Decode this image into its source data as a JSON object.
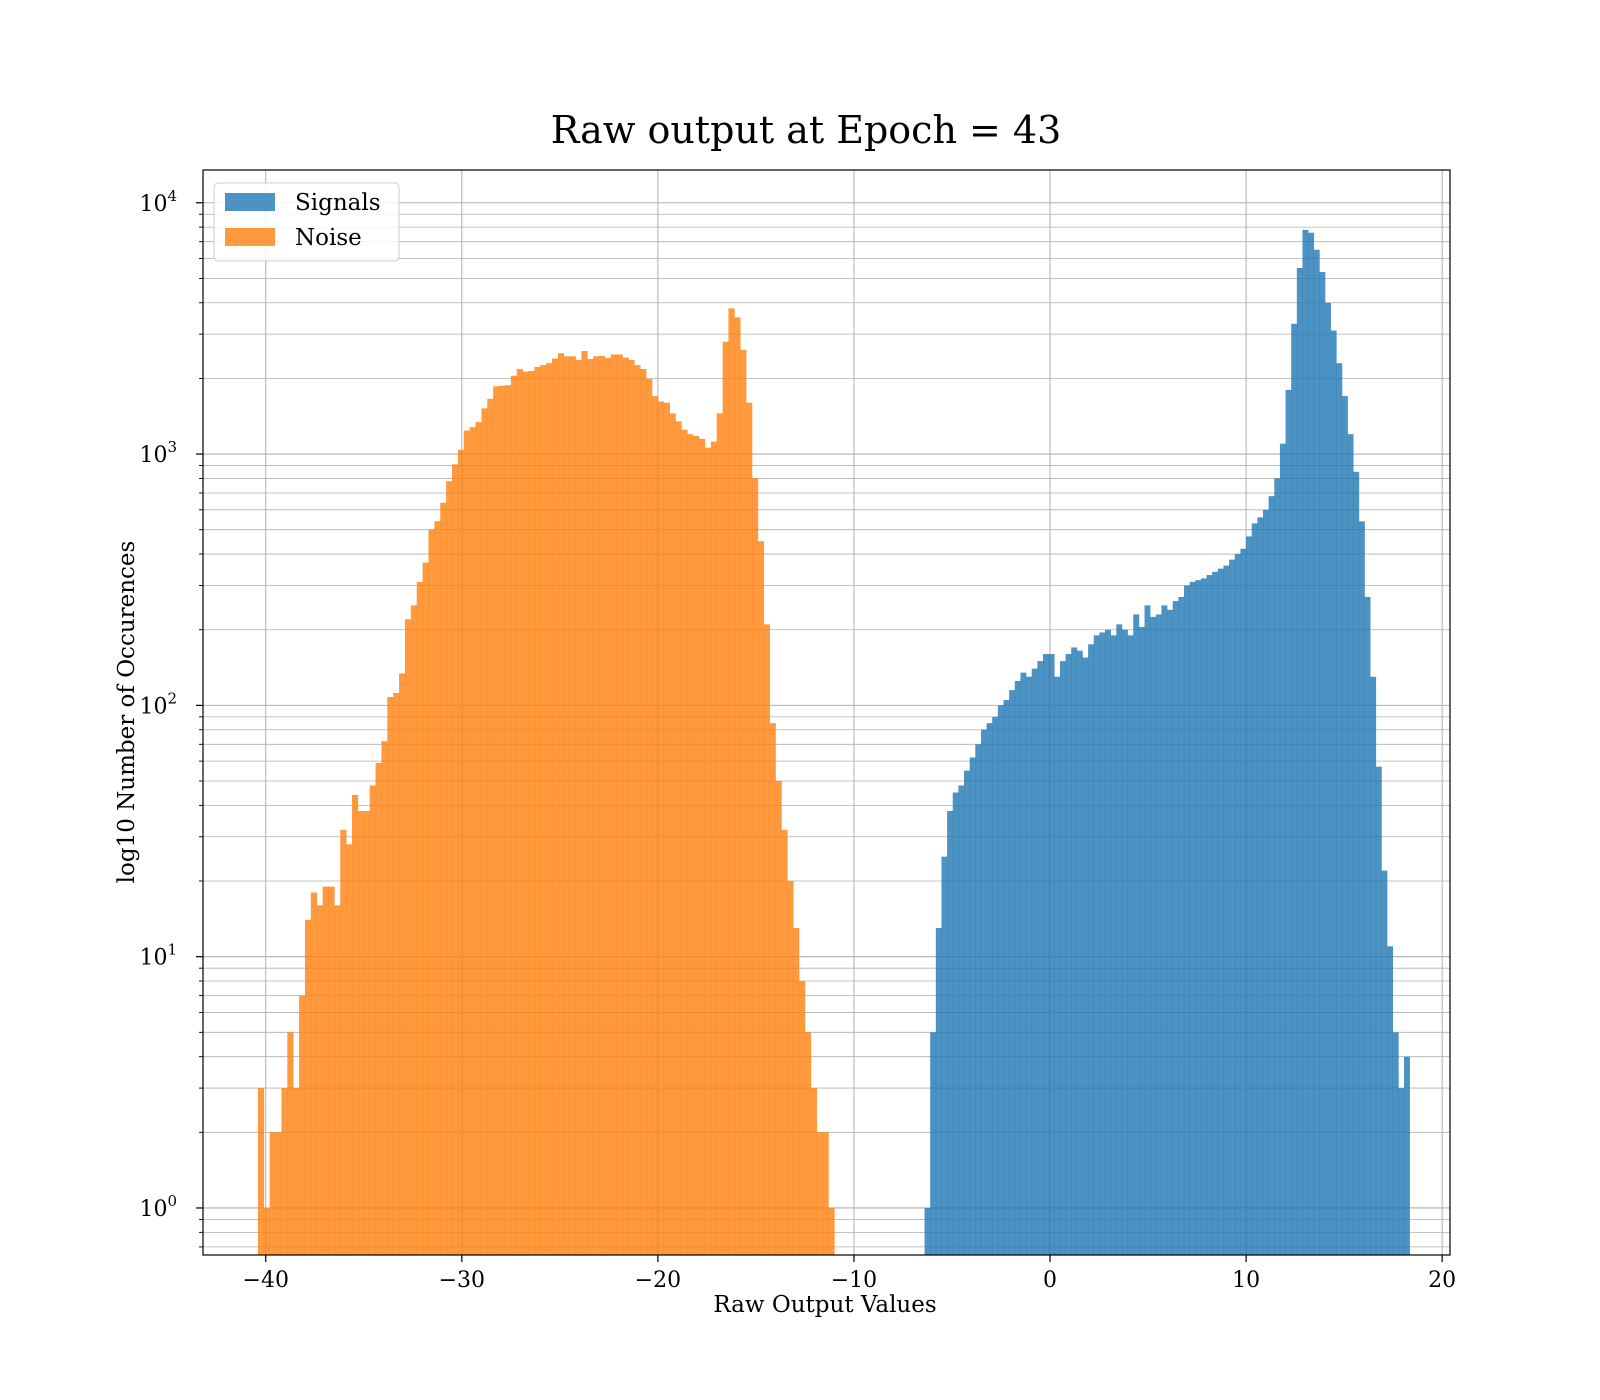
{
  "chart_data": {
    "type": "bar",
    "subtype": "histogram",
    "title": "Raw output at Epoch = 43",
    "xlabel": "Raw Output Values",
    "ylabel": "log10 Number of Occurences",
    "xlim": [
      -43.2,
      20.4
    ],
    "ylim": [
      0.65,
      13500
    ],
    "yscale": "log",
    "grid": true,
    "legend_position": "top-left",
    "xticks": [
      -40,
      -30,
      -20,
      -10,
      0,
      10,
      20
    ],
    "xtick_labels": [
      "−40",
      "−30",
      "−20",
      "−10",
      "0",
      "10",
      "20"
    ],
    "yticks": [
      1,
      10,
      100,
      1000,
      10000
    ],
    "ytick_bases": [
      "10",
      "10",
      "10",
      "10",
      "10"
    ],
    "ytick_exponents": [
      "0",
      "1",
      "2",
      "3",
      "4"
    ],
    "series": [
      {
        "name": "Signals",
        "color": "#1f77b4",
        "opacity": 0.8,
        "bin_start": -6.4,
        "bin_width": 0.2877,
        "values": [
          1,
          5,
          13,
          25,
          38,
          45,
          48,
          55,
          62,
          70,
          80,
          85,
          90,
          100,
          105,
          115,
          125,
          135,
          130,
          140,
          150,
          160,
          160,
          130,
          150,
          160,
          170,
          165,
          155,
          175,
          190,
          195,
          200,
          190,
          210,
          200,
          190,
          230,
          205,
          250,
          225,
          230,
          250,
          240,
          260,
          270,
          300,
          310,
          315,
          320,
          330,
          340,
          350,
          360,
          380,
          400,
          420,
          470,
          530,
          560,
          600,
          680,
          800,
          1100,
          1800,
          3300,
          5500,
          7800,
          7600,
          6500,
          5300,
          4000,
          3100,
          2300,
          1700,
          1200,
          850,
          540,
          270,
          130,
          57,
          22,
          11,
          5,
          3,
          4
        ]
      },
      {
        "name": "Noise",
        "color": "#ff7f0e",
        "opacity": 0.8,
        "bin_start": -40.4,
        "bin_width": 0.3,
        "values": [
          3,
          1,
          2,
          2,
          3,
          5,
          3,
          7,
          14,
          18,
          16,
          19,
          19,
          16,
          32,
          28,
          44,
          38,
          38,
          48,
          59,
          72,
          108,
          112,
          134,
          220,
          250,
          310,
          370,
          500,
          540,
          640,
          780,
          910,
          1040,
          1240,
          1280,
          1340,
          1520,
          1660,
          1860,
          1870,
          1880,
          2050,
          2180,
          2130,
          2140,
          2220,
          2260,
          2300,
          2400,
          2520,
          2450,
          2450,
          2370,
          2570,
          2390,
          2450,
          2460,
          2410,
          2490,
          2490,
          2420,
          2370,
          2260,
          2180,
          1990,
          1700,
          1620,
          1600,
          1450,
          1350,
          1250,
          1200,
          1180,
          1150,
          1060,
          1120,
          1450,
          2800,
          3800,
          3500,
          2600,
          1600,
          800,
          450,
          210,
          85,
          50,
          32,
          20,
          13,
          8,
          5,
          3,
          2,
          2,
          1
        ]
      }
    ]
  }
}
